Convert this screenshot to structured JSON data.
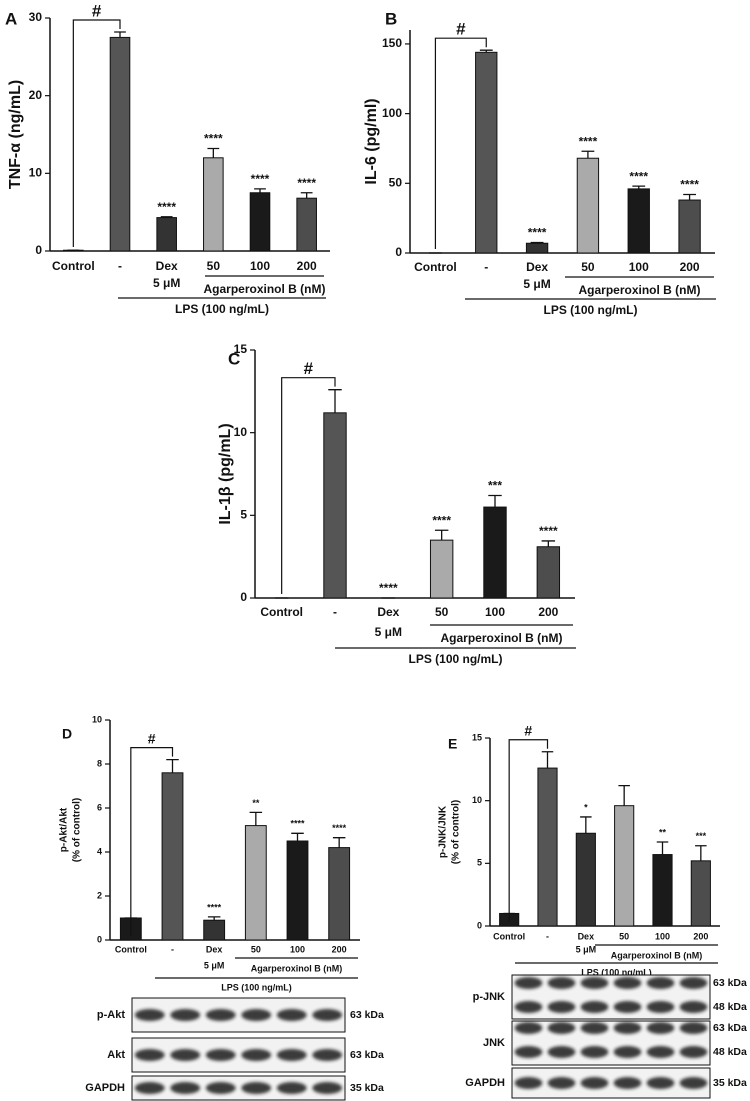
{
  "chart_data": [
    {
      "type": "bar",
      "panel": "A",
      "ylabel": "TNF-α (ng/mL)",
      "categories": [
        "Control",
        "-",
        "Dex",
        "50",
        "100",
        "200"
      ],
      "dose_label": "5 μM",
      "values": [
        0.1,
        27.5,
        4.3,
        12.0,
        7.5,
        6.8
      ],
      "errors": [
        0,
        0.7,
        0.1,
        1.2,
        0.5,
        0.7
      ],
      "annotations": [
        null,
        null,
        "****",
        "****",
        "****",
        "****"
      ],
      "comparison_label": "#",
      "colors": [
        "#ffffff",
        "#555555",
        "#333333",
        "#aaaaaa",
        "#1a1a1a",
        "#4d4d4d"
      ],
      "ylim": [
        0,
        30
      ],
      "yticks": [
        0,
        10,
        20,
        30
      ],
      "group_label": "Agarperoxinol B (nM)",
      "treatment_label": "LPS (100 ng/mL)"
    },
    {
      "type": "bar",
      "panel": "B",
      "ylabel": "IL-6 (pg/ml)",
      "categories": [
        "Control",
        "-",
        "Dex",
        "50",
        "100",
        "200"
      ],
      "dose_label": "5 μM",
      "values": [
        0,
        144,
        7,
        68,
        46,
        38
      ],
      "errors": [
        0,
        1.5,
        0.5,
        5,
        2,
        4
      ],
      "annotations": [
        null,
        null,
        "****",
        "****",
        "****",
        "****"
      ],
      "comparison_label": "#",
      "colors": [
        "#ffffff",
        "#555555",
        "#333333",
        "#aaaaaa",
        "#1a1a1a",
        "#4d4d4d"
      ],
      "ylim": [
        0,
        160
      ],
      "yticks": [
        0,
        50,
        100,
        150
      ],
      "group_label": "Agarperoxinol B (nM)",
      "treatment_label": "LPS (100 ng/mL)"
    },
    {
      "type": "bar",
      "panel": "C",
      "ylabel": "IL-1β (pg/mL)",
      "categories": [
        "Control",
        "-",
        "Dex",
        "50",
        "100",
        "200"
      ],
      "dose_label": "5 μM",
      "values": [
        0,
        11.2,
        0,
        3.5,
        5.5,
        3.1
      ],
      "errors": [
        0,
        1.4,
        0,
        0.6,
        0.7,
        0.35
      ],
      "annotations": [
        null,
        null,
        "****",
        "****",
        "***",
        "****"
      ],
      "comparison_label": "#",
      "colors": [
        "#ffffff",
        "#555555",
        "#333333",
        "#aaaaaa",
        "#1a1a1a",
        "#4d4d4d"
      ],
      "ylim": [
        0,
        15
      ],
      "yticks": [
        0,
        5,
        10,
        15
      ],
      "group_label": "Agarperoxinol B (nM)",
      "treatment_label": "LPS (100 ng/mL)"
    },
    {
      "type": "bar",
      "panel": "D",
      "ylabel": [
        "p-Akt/Akt",
        "(% of control)"
      ],
      "categories": [
        "Control",
        "-",
        "Dex",
        "50",
        "100",
        "200"
      ],
      "dose_label": "5 μM",
      "values": [
        1,
        7.6,
        0.9,
        5.2,
        4.5,
        4.2
      ],
      "errors": [
        0,
        0.6,
        0.15,
        0.6,
        0.35,
        0.45
      ],
      "annotations": [
        null,
        null,
        "****",
        "**",
        "****",
        "****"
      ],
      "comparison_label": "#",
      "colors": [
        "#1a1a1a",
        "#555555",
        "#333333",
        "#aaaaaa",
        "#1a1a1a",
        "#4d4d4d"
      ],
      "ylim": [
        0,
        10
      ],
      "yticks": [
        0,
        2,
        4,
        6,
        8,
        10
      ],
      "group_label": "Agarperoxinol B (nM)",
      "treatment_label": "LPS (100 ng/mL)"
    },
    {
      "type": "bar",
      "panel": "E",
      "ylabel": [
        "p-JNK/JNK",
        "(% of control)"
      ],
      "categories": [
        "Control",
        "-",
        "Dex",
        "50",
        "100",
        "200"
      ],
      "dose_label": "5 μM",
      "values": [
        1,
        12.6,
        7.4,
        9.6,
        5.7,
        5.2
      ],
      "errors": [
        0,
        1.3,
        1.3,
        1.6,
        1.0,
        1.2
      ],
      "annotations": [
        null,
        null,
        "*",
        null,
        "**",
        "***"
      ],
      "comparison_label": "#",
      "colors": [
        "#1a1a1a",
        "#555555",
        "#333333",
        "#aaaaaa",
        "#1a1a1a",
        "#4d4d4d"
      ],
      "ylim": [
        0,
        15
      ],
      "yticks": [
        0,
        5,
        10,
        15
      ],
      "group_label": "Agarperoxinol B (nM)",
      "treatment_label": "LPS (100 ng/mL)"
    }
  ],
  "blots": [
    {
      "rows": [
        {
          "label": "p-Akt",
          "markers": [
            "63 kDa"
          ]
        },
        {
          "label": "Akt",
          "markers": [
            "63 kDa"
          ]
        },
        {
          "label": "GAPDH",
          "markers": [
            "35 kDa"
          ]
        }
      ]
    },
    {
      "rows": [
        {
          "label": "p-JNK",
          "markers": [
            "63 kDa",
            "48 kDa"
          ]
        },
        {
          "label": "JNK",
          "markers": [
            "63 kDa",
            "48 kDa"
          ]
        },
        {
          "label": "GAPDH",
          "markers": [
            "35 kDa"
          ]
        }
      ]
    }
  ]
}
